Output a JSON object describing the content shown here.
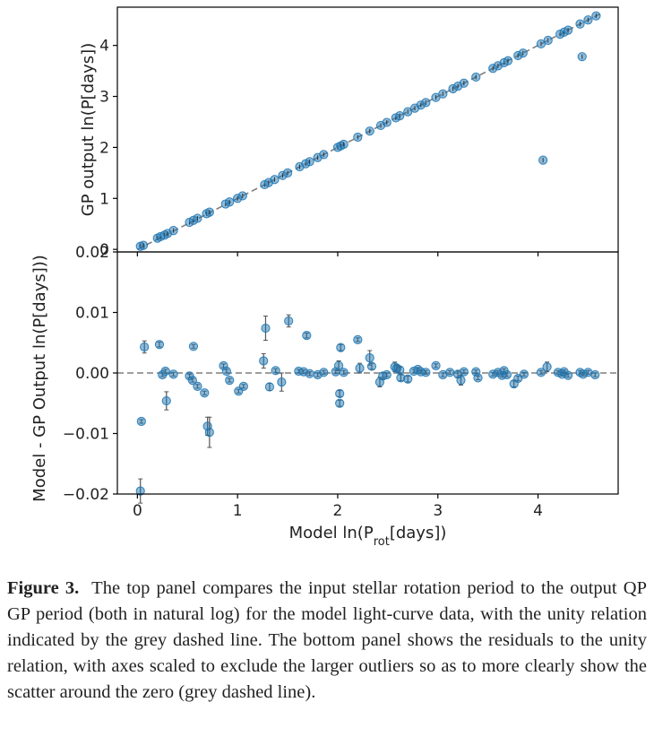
{
  "chart_data": [
    {
      "panel": "top",
      "type": "scatter",
      "ylabel": "GP output ln(P[days])",
      "xlim": [
        -0.2,
        4.8
      ],
      "ylim": [
        -0.05,
        4.75
      ],
      "yticks": [
        "0",
        "1",
        "2",
        "3",
        "4"
      ],
      "reference_line": {
        "kind": "unity",
        "style": "dashed",
        "color": "#7f7f7f"
      },
      "series": [
        {
          "color": "#1f77b4",
          "points": [
            [
              0.03,
              0.06
            ],
            [
              0.06,
              0.08
            ],
            [
              0.2,
              0.22
            ],
            [
              0.23,
              0.25
            ],
            [
              0.27,
              0.28
            ],
            [
              0.3,
              0.31
            ],
            [
              0.36,
              0.37
            ],
            [
              0.52,
              0.53
            ],
            [
              0.56,
              0.57
            ],
            [
              0.6,
              0.61
            ],
            [
              0.69,
              0.7
            ],
            [
              0.72,
              0.73
            ],
            [
              0.88,
              0.89
            ],
            [
              0.92,
              0.93
            ],
            [
              1.0,
              1.0
            ],
            [
              1.05,
              1.05
            ],
            [
              1.27,
              1.27
            ],
            [
              1.31,
              1.31
            ],
            [
              1.37,
              1.37
            ],
            [
              1.45,
              1.45
            ],
            [
              1.5,
              1.5
            ],
            [
              1.62,
              1.62
            ],
            [
              1.68,
              1.68
            ],
            [
              1.72,
              1.72
            ],
            [
              1.8,
              1.8
            ],
            [
              1.86,
              1.86
            ],
            [
              2.0,
              2.0
            ],
            [
              2.03,
              2.03
            ],
            [
              2.06,
              2.06
            ],
            [
              2.2,
              2.2
            ],
            [
              2.32,
              2.32
            ],
            [
              2.43,
              2.43
            ],
            [
              2.49,
              2.49
            ],
            [
              2.58,
              2.58
            ],
            [
              2.62,
              2.62
            ],
            [
              2.7,
              2.7
            ],
            [
              2.77,
              2.77
            ],
            [
              2.83,
              2.83
            ],
            [
              2.88,
              2.88
            ],
            [
              2.98,
              2.98
            ],
            [
              3.05,
              3.05
            ],
            [
              3.15,
              3.15
            ],
            [
              3.2,
              3.2
            ],
            [
              3.26,
              3.26
            ],
            [
              3.38,
              3.38
            ],
            [
              3.55,
              3.55
            ],
            [
              3.6,
              3.6
            ],
            [
              3.66,
              3.66
            ],
            [
              3.7,
              3.7
            ],
            [
              3.8,
              3.8
            ],
            [
              3.85,
              3.85
            ],
            [
              4.03,
              4.03
            ],
            [
              4.1,
              4.1
            ],
            [
              4.22,
              4.22
            ],
            [
              4.26,
              4.26
            ],
            [
              4.3,
              4.3
            ],
            [
              4.42,
              4.42
            ],
            [
              4.5,
              4.5
            ],
            [
              4.58,
              4.58
            ],
            [
              4.05,
              1.75
            ],
            [
              4.44,
              3.78
            ]
          ]
        }
      ]
    },
    {
      "panel": "bottom",
      "type": "scatter",
      "xlabel": "Model ln(P_rot[days])",
      "ylabel": "Model - GP Output ln(P[days]))",
      "xlim": [
        -0.2,
        4.8
      ],
      "ylim": [
        -0.02,
        0.02
      ],
      "xticks": [
        "0",
        "1",
        "2",
        "3",
        "4"
      ],
      "yticks": [
        "−0.02",
        "−0.01",
        "0.00",
        "0.01",
        "0.02"
      ],
      "reference_line": {
        "kind": "zero",
        "style": "dashed",
        "color": "#7f7f7f"
      },
      "series": [
        {
          "color": "#1f77b4",
          "points": [
            {
              "x": 0.03,
              "y": -0.0195,
              "err": 0.002
            },
            {
              "x": 0.04,
              "y": -0.008,
              "err": 0.0003
            },
            {
              "x": 0.07,
              "y": 0.0043,
              "err": 0.001
            },
            {
              "x": 0.22,
              "y": 0.0047,
              "err": 0.0004
            },
            {
              "x": 0.25,
              "y": -0.0003,
              "err": 0.0003
            },
            {
              "x": 0.28,
              "y": 0.0003,
              "err": 0.0003
            },
            {
              "x": 0.29,
              "y": -0.0046,
              "err": 0.0015
            },
            {
              "x": 0.36,
              "y": -0.0002,
              "err": 0.0003
            },
            {
              "x": 0.52,
              "y": -0.0005,
              "err": 0.0003
            },
            {
              "x": 0.55,
              "y": -0.0012,
              "err": 0.0003
            },
            {
              "x": 0.56,
              "y": 0.0044,
              "err": 0.0003
            },
            {
              "x": 0.6,
              "y": -0.0022,
              "err": 0.0003
            },
            {
              "x": 0.67,
              "y": -0.0033,
              "err": 0.0003
            },
            {
              "x": 0.7,
              "y": -0.0088,
              "err": 0.0015
            },
            {
              "x": 0.72,
              "y": -0.0098,
              "err": 0.0025
            },
            {
              "x": 0.86,
              "y": 0.0012,
              "err": 0.0003
            },
            {
              "x": 0.89,
              "y": 0.0003,
              "err": 0.0003
            },
            {
              "x": 0.92,
              "y": -0.0012,
              "err": 0.0003
            },
            {
              "x": 1.01,
              "y": -0.003,
              "err": 0.0003
            },
            {
              "x": 1.06,
              "y": -0.0022,
              "err": 0.0003
            },
            {
              "x": 1.26,
              "y": 0.002,
              "err": 0.0012
            },
            {
              "x": 1.28,
              "y": 0.0074,
              "err": 0.002
            },
            {
              "x": 1.32,
              "y": -0.0023,
              "err": 0.0006
            },
            {
              "x": 1.38,
              "y": 0.0004,
              "err": 0.0003
            },
            {
              "x": 1.44,
              "y": -0.0015,
              "err": 0.0015
            },
            {
              "x": 1.51,
              "y": 0.0086,
              "err": 0.001
            },
            {
              "x": 1.61,
              "y": 0.0003,
              "err": 0.0003
            },
            {
              "x": 1.66,
              "y": 0.0002,
              "err": 0.0003
            },
            {
              "x": 1.69,
              "y": 0.0062,
              "err": 0.0004
            },
            {
              "x": 1.72,
              "y": -0.0001,
              "err": 0.0003
            },
            {
              "x": 1.8,
              "y": -0.0003,
              "err": 0.0003
            },
            {
              "x": 1.86,
              "y": 0.0001,
              "err": 0.0003
            },
            {
              "x": 1.98,
              "y": 0.0002,
              "err": 0.0003
            },
            {
              "x": 2.01,
              "y": 0.0012,
              "err": 0.0008
            },
            {
              "x": 2.02,
              "y": -0.0034,
              "err": 0.0005
            },
            {
              "x": 2.02,
              "y": -0.005,
              "err": 0.0005
            },
            {
              "x": 2.03,
              "y": 0.0042,
              "err": 0.0005
            },
            {
              "x": 2.06,
              "y": 0.0001,
              "err": 0.0003
            },
            {
              "x": 2.2,
              "y": 0.0055,
              "err": 0.0003
            },
            {
              "x": 2.22,
              "y": 0.0008,
              "err": 0.0008
            },
            {
              "x": 2.32,
              "y": 0.0025,
              "err": 0.0012
            },
            {
              "x": 2.34,
              "y": 0.0011,
              "err": 0.0005
            },
            {
              "x": 2.42,
              "y": -0.0015,
              "err": 0.0008
            },
            {
              "x": 2.45,
              "y": -0.0005,
              "err": 0.0005
            },
            {
              "x": 2.49,
              "y": -0.0003,
              "err": 0.0003
            },
            {
              "x": 2.57,
              "y": 0.001,
              "err": 0.0008
            },
            {
              "x": 2.59,
              "y": 0.0008,
              "err": 0.0005
            },
            {
              "x": 2.62,
              "y": 0.0005,
              "err": 0.0005
            },
            {
              "x": 2.63,
              "y": -0.0008,
              "err": 0.0005
            },
            {
              "x": 2.7,
              "y": -0.001,
              "err": 0.0005
            },
            {
              "x": 2.76,
              "y": 0.0003,
              "err": 0.0003
            },
            {
              "x": 2.8,
              "y": 0.0006,
              "err": 0.0003
            },
            {
              "x": 2.83,
              "y": 0.0002,
              "err": 0.0003
            },
            {
              "x": 2.88,
              "y": 0.0001,
              "err": 0.0003
            },
            {
              "x": 2.98,
              "y": 0.0012,
              "err": 0.0003
            },
            {
              "x": 3.05,
              "y": -0.0003,
              "err": 0.0003
            },
            {
              "x": 3.12,
              "y": 0.0001,
              "err": 0.0003
            },
            {
              "x": 3.2,
              "y": -0.0002,
              "err": 0.0005
            },
            {
              "x": 3.23,
              "y": -0.0012,
              "err": 0.0008
            },
            {
              "x": 3.26,
              "y": 0.0002,
              "err": 0.0003
            },
            {
              "x": 3.38,
              "y": 0.0002,
              "err": 0.0003
            },
            {
              "x": 3.4,
              "y": -0.0008,
              "err": 0.0003
            },
            {
              "x": 3.55,
              "y": -0.0002,
              "err": 0.0003
            },
            {
              "x": 3.6,
              "y": 0.0001,
              "err": 0.0003
            },
            {
              "x": 3.64,
              "y": -0.0004,
              "err": 0.0003
            },
            {
              "x": 3.66,
              "y": 0.0004,
              "err": 0.0003
            },
            {
              "x": 3.69,
              "y": -0.0003,
              "err": 0.0003
            },
            {
              "x": 3.76,
              "y": -0.0018,
              "err": 0.0005
            },
            {
              "x": 3.8,
              "y": -0.0009,
              "err": 0.0004
            },
            {
              "x": 3.86,
              "y": -0.0002,
              "err": 0.0003
            },
            {
              "x": 4.03,
              "y": 0.0001,
              "err": 0.0003
            },
            {
              "x": 4.09,
              "y": 0.001,
              "err": 0.0008
            },
            {
              "x": 4.2,
              "y": 0.0001,
              "err": 0.0003
            },
            {
              "x": 4.24,
              "y": -0.0002,
              "err": 0.0003
            },
            {
              "x": 4.26,
              "y": 0.0002,
              "err": 0.0003
            },
            {
              "x": 4.3,
              "y": -0.0004,
              "err": 0.0003
            },
            {
              "x": 4.42,
              "y": 0.0001,
              "err": 0.0003
            },
            {
              "x": 4.45,
              "y": -0.0002,
              "err": 0.0003
            },
            {
              "x": 4.5,
              "y": 0.0001,
              "err": 0.0003
            },
            {
              "x": 4.57,
              "y": -0.0003,
              "err": 0.0003
            }
          ]
        }
      ]
    }
  ],
  "caption": {
    "label": "Figure 3.",
    "text": "The top panel compares the input stellar rotation period to the output QP GP period (both in natural log) for the model light-curve data, with the unity relation indicated by the grey dashed line. The bottom panel shows the residuals to the unity relation, with axes scaled to exclude the larger outliers so as to more clearly show the scatter around the zero (grey dashed line)."
  }
}
